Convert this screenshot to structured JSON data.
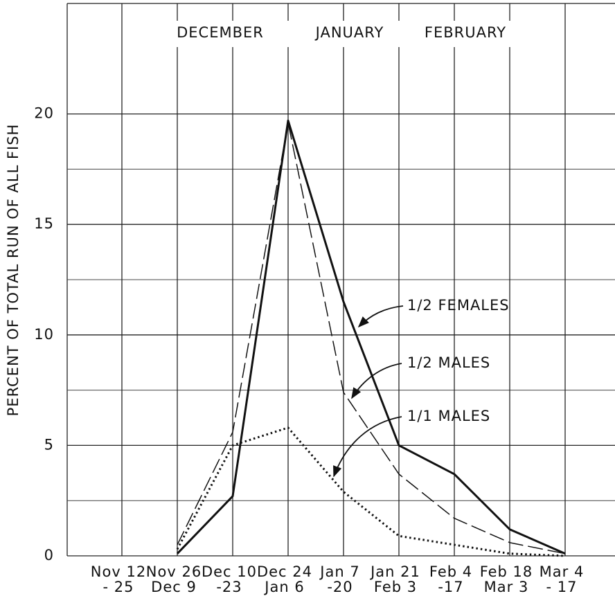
{
  "chart_data": {
    "type": "line",
    "y_label": "PERCENT OF TOTAL RUN OF ALL FISH",
    "months": [
      "DECEMBER",
      "JANUARY",
      "FEBRUARY"
    ],
    "categories": [
      [
        "Nov 12",
        "- 25"
      ],
      [
        "Nov 26",
        "Dec 9"
      ],
      [
        "Dec 10",
        "-23"
      ],
      [
        "Dec 24",
        "Jan 6"
      ],
      [
        "Jan 7",
        "-20"
      ],
      [
        "Jan 21",
        "Feb 3"
      ],
      [
        "Feb 4",
        "-17"
      ],
      [
        "Feb 18",
        "Mar 3"
      ],
      [
        "Mar 4",
        "- 17"
      ]
    ],
    "series": [
      {
        "name": "1/2   FEMALES",
        "color": "#111",
        "style": "solid",
        "values": [
          null,
          0.1,
          2.7,
          19.7,
          11.5,
          5.0,
          3.7,
          1.2,
          0.1
        ]
      },
      {
        "name": "1/2   MALES",
        "color": "#111",
        "style": "dashed",
        "values": [
          null,
          0.5,
          5.6,
          19.6,
          7.4,
          3.7,
          1.7,
          0.6,
          0.1
        ]
      },
      {
        "name": "1/1   MALES",
        "color": "#111",
        "style": "dotted",
        "values": [
          null,
          0.3,
          5.0,
          5.8,
          2.9,
          0.9,
          0.5,
          0.1,
          0.0
        ]
      }
    ],
    "ylim": [
      0,
      25
    ],
    "yticks": [
      0,
      5,
      10,
      15,
      20
    ],
    "minor_yticks": [
      2.5,
      7.5,
      12.5,
      17.5
    ],
    "grid": true
  }
}
